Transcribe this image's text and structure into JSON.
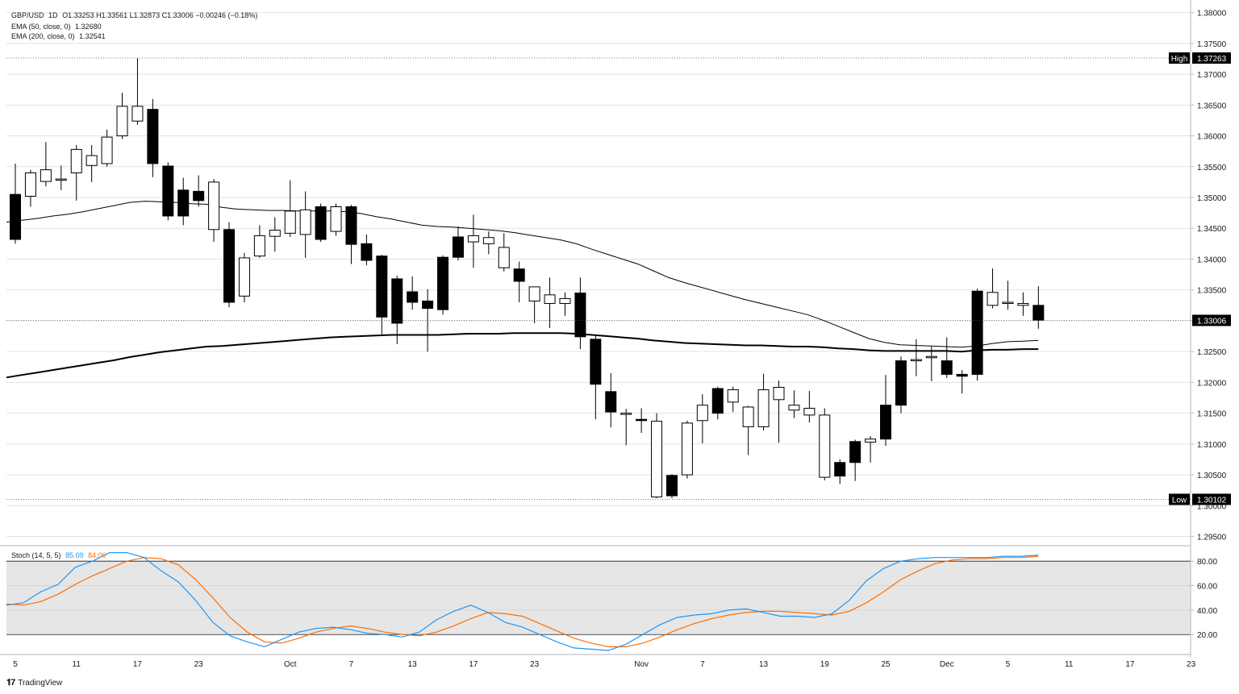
{
  "header": {
    "symbol": "GBP/USD",
    "timeframe": "1D",
    "ohlc": "O1.33253  H1.33561  L1.32873  C1.33006  −0.00246 (−0.18%)",
    "ema50_label": "EMA (50, close, 0)",
    "ema50_value": "1.32680",
    "ema200_label": "EMA (200, close, 0)",
    "ema200_value": "1.32541"
  },
  "stoch": {
    "label": "Stoch (14, 5, 5)",
    "k_value": "85.09",
    "d_value": "84.00"
  },
  "markers": {
    "high_label": "High",
    "high_value": "1.37263",
    "low_label": "Low",
    "low_value": "1.30102",
    "last_value": "1.33006"
  },
  "branding": "TradingView",
  "colors": {
    "up_body": "#ffffff",
    "down_body": "#000000",
    "ema50": "#000000",
    "ema200": "#000000",
    "stoch_k": "#2196f3",
    "stoch_d": "#ff6d00",
    "stoch_band": "#e6e6e6"
  },
  "chart_data": {
    "type": "candlestick",
    "instrument": "GBP/USD",
    "y_axis_ticks": [
      "1.38000",
      "1.37500",
      "1.37000",
      "1.36500",
      "1.36000",
      "1.35500",
      "1.35000",
      "1.34500",
      "1.34000",
      "1.33500",
      "1.33000",
      "1.32500",
      "1.32000",
      "1.31500",
      "1.31000",
      "1.30500",
      "1.30000",
      "1.29500"
    ],
    "ylim": [
      1.2935,
      1.381
    ],
    "stoch_ticks": [
      "80.00",
      "60.00",
      "40.00",
      "20.00"
    ],
    "stoch_ylim": [
      5,
      92
    ],
    "stoch_band": [
      20,
      80
    ],
    "x_tick_labels": [
      {
        "i": 0,
        "label": "5"
      },
      {
        "i": 4,
        "label": "11"
      },
      {
        "i": 8,
        "label": "17"
      },
      {
        "i": 12,
        "label": "23"
      },
      {
        "i": 18,
        "label": "Oct"
      },
      {
        "i": 22,
        "label": "7"
      },
      {
        "i": 26,
        "label": "13"
      },
      {
        "i": 30,
        "label": "17"
      },
      {
        "i": 34,
        "label": "23"
      },
      {
        "i": 41,
        "label": "Nov"
      },
      {
        "i": 45,
        "label": "7"
      },
      {
        "i": 49,
        "label": "13"
      },
      {
        "i": 53,
        "label": "19"
      },
      {
        "i": 57,
        "label": "25"
      },
      {
        "i": 61,
        "label": "Dec"
      },
      {
        "i": 65,
        "label": "5"
      },
      {
        "i": 69,
        "label": "11"
      },
      {
        "i": 73,
        "label": "17"
      },
      {
        "i": 77,
        "label": "23"
      }
    ],
    "candles": [
      {
        "o": 1.3505,
        "h": 1.3555,
        "l": 1.3425,
        "c": 1.3432
      },
      {
        "o": 1.3502,
        "h": 1.3545,
        "l": 1.3485,
        "c": 1.354
      },
      {
        "o": 1.3526,
        "h": 1.359,
        "l": 1.3518,
        "c": 1.3545
      },
      {
        "o": 1.3528,
        "h": 1.3552,
        "l": 1.3512,
        "c": 1.353
      },
      {
        "o": 1.354,
        "h": 1.3585,
        "l": 1.3495,
        "c": 1.3578
      },
      {
        "o": 1.3552,
        "h": 1.3585,
        "l": 1.3525,
        "c": 1.3568
      },
      {
        "o": 1.3555,
        "h": 1.361,
        "l": 1.355,
        "c": 1.3598
      },
      {
        "o": 1.36,
        "h": 1.367,
        "l": 1.3595,
        "c": 1.3648
      },
      {
        "o": 1.3624,
        "h": 1.3726,
        "l": 1.3618,
        "c": 1.3648
      },
      {
        "o": 1.3643,
        "h": 1.366,
        "l": 1.3533,
        "c": 1.3555
      },
      {
        "o": 1.3551,
        "h": 1.3557,
        "l": 1.3463,
        "c": 1.347
      },
      {
        "o": 1.3512,
        "h": 1.3532,
        "l": 1.3455,
        "c": 1.347
      },
      {
        "o": 1.351,
        "h": 1.3536,
        "l": 1.3485,
        "c": 1.3495
      },
      {
        "o": 1.3448,
        "h": 1.353,
        "l": 1.3428,
        "c": 1.3525
      },
      {
        "o": 1.3448,
        "h": 1.346,
        "l": 1.3322,
        "c": 1.333
      },
      {
        "o": 1.334,
        "h": 1.341,
        "l": 1.333,
        "c": 1.3402
      },
      {
        "o": 1.3405,
        "h": 1.3455,
        "l": 1.3402,
        "c": 1.3438
      },
      {
        "o": 1.3437,
        "h": 1.3468,
        "l": 1.3412,
        "c": 1.3447
      },
      {
        "o": 1.3442,
        "h": 1.3528,
        "l": 1.3436,
        "c": 1.3478
      },
      {
        "o": 1.344,
        "h": 1.351,
        "l": 1.3402,
        "c": 1.348
      },
      {
        "o": 1.3485,
        "h": 1.349,
        "l": 1.3428,
        "c": 1.3432
      },
      {
        "o": 1.3445,
        "h": 1.349,
        "l": 1.3438,
        "c": 1.3485
      },
      {
        "o": 1.3485,
        "h": 1.3488,
        "l": 1.3392,
        "c": 1.3424
      },
      {
        "o": 1.3425,
        "h": 1.344,
        "l": 1.339,
        "c": 1.3398
      },
      {
        "o": 1.3405,
        "h": 1.3407,
        "l": 1.3278,
        "c": 1.3306
      },
      {
        "o": 1.3368,
        "h": 1.3373,
        "l": 1.3262,
        "c": 1.3296
      },
      {
        "o": 1.3347,
        "h": 1.3372,
        "l": 1.3318,
        "c": 1.333
      },
      {
        "o": 1.3332,
        "h": 1.3351,
        "l": 1.325,
        "c": 1.332
      },
      {
        "o": 1.3403,
        "h": 1.3406,
        "l": 1.331,
        "c": 1.3318
      },
      {
        "o": 1.3436,
        "h": 1.3453,
        "l": 1.3398,
        "c": 1.3403
      },
      {
        "o": 1.3428,
        "h": 1.3472,
        "l": 1.3386,
        "c": 1.3438
      },
      {
        "o": 1.3425,
        "h": 1.3445,
        "l": 1.3408,
        "c": 1.3435
      },
      {
        "o": 1.3386,
        "h": 1.3442,
        "l": 1.338,
        "c": 1.3419
      },
      {
        "o": 1.3384,
        "h": 1.3396,
        "l": 1.333,
        "c": 1.3364
      },
      {
        "o": 1.3332,
        "h": 1.3353,
        "l": 1.3296,
        "c": 1.3355
      },
      {
        "o": 1.3328,
        "h": 1.337,
        "l": 1.3288,
        "c": 1.3342
      },
      {
        "o": 1.3328,
        "h": 1.3346,
        "l": 1.3308,
        "c": 1.3336
      },
      {
        "o": 1.3345,
        "h": 1.337,
        "l": 1.3254,
        "c": 1.3274
      },
      {
        "o": 1.327,
        "h": 1.3275,
        "l": 1.314,
        "c": 1.3197
      },
      {
        "o": 1.3185,
        "h": 1.3215,
        "l": 1.3127,
        "c": 1.3152
      },
      {
        "o": 1.315,
        "h": 1.3157,
        "l": 1.3098,
        "c": 1.315
      },
      {
        "o": 1.314,
        "h": 1.3158,
        "l": 1.3118,
        "c": 1.3138
      },
      {
        "o": 1.3014,
        "h": 1.315,
        "l": 1.3012,
        "c": 1.3137
      },
      {
        "o": 1.3049,
        "h": 1.3051,
        "l": 1.3012,
        "c": 1.3016
      },
      {
        "o": 1.305,
        "h": 1.3138,
        "l": 1.3044,
        "c": 1.3134
      },
      {
        "o": 1.3138,
        "h": 1.3181,
        "l": 1.3101,
        "c": 1.3163
      },
      {
        "o": 1.319,
        "h": 1.3193,
        "l": 1.314,
        "c": 1.315
      },
      {
        "o": 1.3168,
        "h": 1.3193,
        "l": 1.3152,
        "c": 1.3188
      },
      {
        "o": 1.3128,
        "h": 1.3162,
        "l": 1.3082,
        "c": 1.316
      },
      {
        "o": 1.3128,
        "h": 1.3214,
        "l": 1.3122,
        "c": 1.3188
      },
      {
        "o": 1.3172,
        "h": 1.3203,
        "l": 1.3102,
        "c": 1.3192
      },
      {
        "o": 1.3155,
        "h": 1.3187,
        "l": 1.3142,
        "c": 1.3163
      },
      {
        "o": 1.3147,
        "h": 1.3186,
        "l": 1.3135,
        "c": 1.3158
      },
      {
        "o": 1.3046,
        "h": 1.3158,
        "l": 1.3041,
        "c": 1.3147
      },
      {
        "o": 1.307,
        "h": 1.3075,
        "l": 1.3035,
        "c": 1.3048
      },
      {
        "o": 1.3104,
        "h": 1.3107,
        "l": 1.304,
        "c": 1.307
      },
      {
        "o": 1.3103,
        "h": 1.3113,
        "l": 1.307,
        "c": 1.3108
      },
      {
        "o": 1.3163,
        "h": 1.3212,
        "l": 1.3097,
        "c": 1.3108
      },
      {
        "o": 1.3235,
        "h": 1.3242,
        "l": 1.315,
        "c": 1.3163
      },
      {
        "o": 1.3235,
        "h": 1.327,
        "l": 1.321,
        "c": 1.3237
      },
      {
        "o": 1.324,
        "h": 1.3258,
        "l": 1.3202,
        "c": 1.3242
      },
      {
        "o": 1.3235,
        "h": 1.3273,
        "l": 1.3207,
        "c": 1.3213
      },
      {
        "o": 1.3213,
        "h": 1.322,
        "l": 1.3182,
        "c": 1.321
      },
      {
        "o": 1.3348,
        "h": 1.3352,
        "l": 1.3203,
        "c": 1.3213
      },
      {
        "o": 1.3325,
        "h": 1.3385,
        "l": 1.332,
        "c": 1.3346
      },
      {
        "o": 1.3328,
        "h": 1.3365,
        "l": 1.3318,
        "c": 1.333
      },
      {
        "o": 1.3325,
        "h": 1.3346,
        "l": 1.3308,
        "c": 1.3328
      },
      {
        "o": 1.3325,
        "h": 1.3356,
        "l": 1.3287,
        "c": 1.3301
      }
    ],
    "ema50": [
      1.346,
      1.3463,
      1.3466,
      1.347,
      1.3473,
      1.3477,
      1.3482,
      1.3487,
      1.3492,
      1.3494,
      1.3493,
      1.3492,
      1.349,
      1.3489,
      1.3484,
      1.3481,
      1.348,
      1.3479,
      1.3479,
      1.3478,
      1.3478,
      1.3478,
      1.3477,
      1.3474,
      1.3469,
      1.3465,
      1.346,
      1.3455,
      1.3453,
      1.3452,
      1.345,
      1.3448,
      1.3446,
      1.3443,
      1.3439,
      1.3435,
      1.3431,
      1.3425,
      1.3416,
      1.3408,
      1.34,
      1.3392,
      1.3381,
      1.337,
      1.3362,
      1.3355,
      1.3348,
      1.3341,
      1.3334,
      1.3328,
      1.3322,
      1.3316,
      1.331,
      1.3301,
      1.3291,
      1.3281,
      1.3271,
      1.3265,
      1.3261,
      1.326,
      1.3259,
      1.3258,
      1.3257,
      1.3259,
      1.3263,
      1.3266,
      1.3267,
      1.3268
    ],
    "ema200": [
      1.3208,
      1.3212,
      1.3216,
      1.322,
      1.3224,
      1.3228,
      1.3232,
      1.3236,
      1.3241,
      1.3245,
      1.3249,
      1.3252,
      1.3255,
      1.3258,
      1.3259,
      1.3261,
      1.3263,
      1.3265,
      1.3267,
      1.3269,
      1.3271,
      1.3273,
      1.3274,
      1.3275,
      1.3276,
      1.3277,
      1.3277,
      1.3277,
      1.3277,
      1.3278,
      1.3279,
      1.3279,
      1.3279,
      1.328,
      1.328,
      1.328,
      1.328,
      1.3279,
      1.3277,
      1.3275,
      1.3273,
      1.3271,
      1.3268,
      1.3266,
      1.3264,
      1.3263,
      1.3262,
      1.3261,
      1.326,
      1.326,
      1.3259,
      1.3258,
      1.3258,
      1.3257,
      1.3255,
      1.3254,
      1.3252,
      1.3251,
      1.3251,
      1.3251,
      1.3251,
      1.3251,
      1.325,
      1.3252,
      1.3253,
      1.3253,
      1.3254,
      1.3254
    ],
    "stoch_k": [
      44,
      46,
      55,
      61,
      75,
      80,
      87,
      87,
      83,
      72,
      63,
      48,
      30,
      19,
      14,
      10,
      16,
      22,
      25,
      26,
      24,
      21,
      20,
      18,
      22,
      32,
      39,
      44,
      38,
      30,
      26,
      20,
      14,
      9,
      8,
      7,
      12,
      20,
      28,
      34,
      36,
      37,
      40,
      41,
      38,
      35,
      35,
      34,
      37,
      48,
      64,
      74,
      80,
      82,
      83,
      83,
      83,
      83,
      84,
      84,
      85
    ],
    "stoch_d": [
      45,
      44,
      47,
      53,
      61,
      68,
      74,
      80,
      83,
      82,
      77,
      65,
      50,
      34,
      22,
      14,
      13,
      17,
      22,
      25,
      27,
      25,
      22,
      20,
      19,
      22,
      27,
      33,
      38,
      37,
      35,
      29,
      23,
      17,
      13,
      10,
      10,
      13,
      18,
      24,
      29,
      33,
      36,
      38,
      39,
      39,
      38,
      37,
      36,
      39,
      46,
      55,
      65,
      72,
      78,
      81,
      82,
      82,
      83,
      83,
      84
    ]
  }
}
